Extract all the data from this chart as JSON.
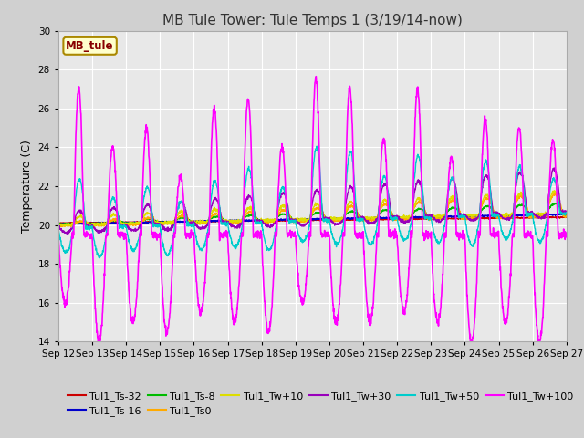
{
  "title": "MB Tule Tower: Tule Temps 1 (3/19/14-now)",
  "ylabel": "Temperature (C)",
  "ylim": [
    14,
    30
  ],
  "yticks": [
    14,
    16,
    18,
    20,
    22,
    24,
    26,
    28,
    30
  ],
  "xlabel_dates": [
    "Sep 12",
    "Sep 13",
    "Sep 14",
    "Sep 15",
    "Sep 16",
    "Sep 17",
    "Sep 18",
    "Sep 19",
    "Sep 20",
    "Sep 21",
    "Sep 22",
    "Sep 23",
    "Sep 24",
    "Sep 25",
    "Sep 26",
    "Sep 27"
  ],
  "legend_box_label": "MB_tule",
  "legend_box_fg": "#880000",
  "legend_box_bg": "#ffffcc",
  "legend_box_edge": "#aa8800",
  "series_order": [
    "Tul1_Ts-32",
    "Tul1_Ts-16",
    "Tul1_Ts-8",
    "Tul1_Ts0",
    "Tul1_Tw+10",
    "Tul1_Tw+30",
    "Tul1_Tw+50",
    "Tul1_Tw+100"
  ],
  "series_colors": {
    "Tul1_Ts-32": "#cc0000",
    "Tul1_Ts-16": "#0000cc",
    "Tul1_Ts-8": "#00bb00",
    "Tul1_Ts0": "#ffaa00",
    "Tul1_Tw+10": "#dddd00",
    "Tul1_Tw+30": "#9900bb",
    "Tul1_Tw+50": "#00cccc",
    "Tul1_Tw+100": "#ff00ff"
  },
  "plot_bg": "#e8e8e8",
  "fig_bg": "#d0d0d0",
  "title_fontsize": 11,
  "tick_fontsize": 7.5,
  "legend_fontsize": 8,
  "ylabel_fontsize": 9
}
